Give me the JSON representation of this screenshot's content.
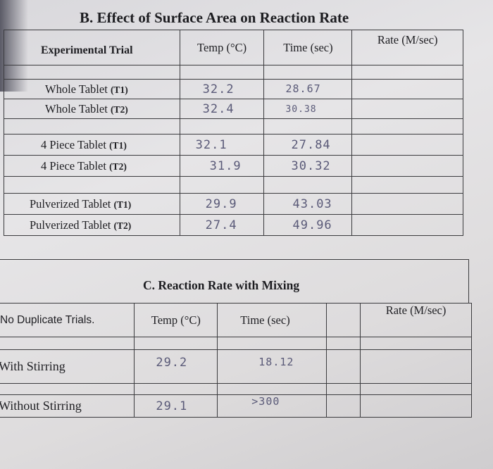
{
  "section_b": {
    "title": "B. Effect of Surface Area on Reaction Rate",
    "headers": [
      "Experimental Trial",
      "Temp (°C)",
      "Time (sec)",
      "Rate (M/sec)"
    ],
    "rows": [
      {
        "label": "Whole Tablet",
        "trial": "(T1)",
        "temp": "32.2",
        "time": "28.67",
        "rate": ""
      },
      {
        "label": "Whole Tablet",
        "trial": "(T2)",
        "temp": "32.4",
        "time": "30.38",
        "rate": ""
      },
      {
        "label": "4 Piece Tablet",
        "trial": "(T1)",
        "temp": "32.1",
        "time": "27.84",
        "rate": ""
      },
      {
        "label": "4 Piece Tablet",
        "trial": "(T2)",
        "temp": "31.9",
        "time": "30.32",
        "rate": ""
      },
      {
        "label": "Pulverized Tablet",
        "trial": "(T1)",
        "temp": "29.9",
        "time": "43.03",
        "rate": ""
      },
      {
        "label": "Pulverized Tablet",
        "trial": "(T2)",
        "temp": "27.4",
        "time": "49.96",
        "rate": ""
      }
    ]
  },
  "section_c": {
    "title": "C. Reaction Rate with Mixing",
    "headers": [
      "No Duplicate Trials.",
      "Temp (°C)",
      "Time (sec)",
      "Rate (M/sec)"
    ],
    "rows": [
      {
        "label": "With Stirring",
        "temp": "29.2",
        "time": "18.12",
        "rate": ""
      },
      {
        "label": "Without Stirring",
        "temp": "29.1",
        "time": ">300",
        "rate": ""
      }
    ]
  }
}
